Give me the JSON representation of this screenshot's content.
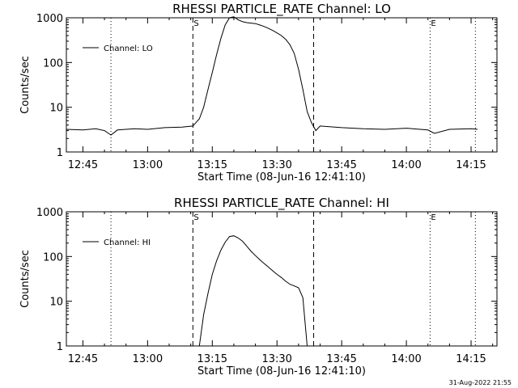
{
  "footer": {
    "timestamp": "31-Aug-2022 21:55"
  },
  "chart_data": [
    {
      "type": "line",
      "title": "RHESSI PARTICLE_RATE Channel: LO",
      "xlabel": "Start Time (08-Jun-16 12:41:10)",
      "ylabel": "Counts/sec",
      "yscale": "log",
      "xlim": [
        "12:41:10",
        "14:21:00"
      ],
      "ylim": [
        1,
        1000
      ],
      "x_tick_labels": [
        "12:45",
        "13:00",
        "13:15",
        "13:30",
        "13:45",
        "14:00",
        "14:15"
      ],
      "y_tick_labels": [
        "1",
        "10",
        "100",
        "1000"
      ],
      "legend": {
        "label": "Channel: LO",
        "position": "top-left"
      },
      "markers": [
        {
          "label": "S",
          "time": "13:10:30",
          "style": "dashed"
        },
        {
          "label": "",
          "time": "13:38:30",
          "style": "dashed"
        },
        {
          "label": "",
          "time": "12:51:30",
          "style": "dotted"
        },
        {
          "label": "E",
          "time": "14:05:30",
          "style": "dotted"
        },
        {
          "label": "",
          "time": "14:16:00",
          "style": "dotted"
        }
      ],
      "series": [
        {
          "name": "Channel: LO",
          "x": [
            "12:41:10",
            "12:45:00",
            "12:48:00",
            "12:50:00",
            "12:51:30",
            "12:53:00",
            "12:57:00",
            "13:00:00",
            "13:04:00",
            "13:08:00",
            "13:10:30",
            "13:12:00",
            "13:13:00",
            "13:14:00",
            "13:15:00",
            "13:16:00",
            "13:17:00",
            "13:18:00",
            "13:19:00",
            "13:20:00",
            "13:21:00",
            "13:22:00",
            "13:23:00",
            "13:24:00",
            "13:25:00",
            "13:26:00",
            "13:27:00",
            "13:28:00",
            "13:29:00",
            "13:30:00",
            "13:31:00",
            "13:32:00",
            "13:33:00",
            "13:34:00",
            "13:35:00",
            "13:36:00",
            "13:37:00",
            "13:38:00",
            "13:39:00",
            "13:40:00",
            "13:45:00",
            "13:50:00",
            "13:55:00",
            "14:00:00",
            "14:05:00",
            "14:06:30",
            "14:10:00",
            "14:15:00",
            "14:16:30"
          ],
          "y": [
            3.2,
            3.1,
            3.3,
            3.0,
            2.4,
            3.1,
            3.3,
            3.2,
            3.5,
            3.6,
            3.8,
            5.5,
            10,
            25,
            60,
            150,
            350,
            700,
            1000,
            1050,
            900,
            820,
            780,
            760,
            740,
            690,
            640,
            580,
            520,
            460,
            400,
            330,
            250,
            160,
            70,
            25,
            8,
            4.5,
            3.0,
            3.8,
            3.5,
            3.3,
            3.2,
            3.4,
            3.1,
            2.6,
            3.2,
            3.3,
            3.2
          ]
        }
      ]
    },
    {
      "type": "line",
      "title": "RHESSI PARTICLE_RATE Channel: HI",
      "xlabel": "Start Time (08-Jun-16 12:41:10)",
      "ylabel": "Counts/sec",
      "yscale": "log",
      "xlim": [
        "12:41:10",
        "14:21:00"
      ],
      "ylim": [
        1,
        1000
      ],
      "x_tick_labels": [
        "12:45",
        "13:00",
        "13:15",
        "13:30",
        "13:45",
        "14:00",
        "14:15"
      ],
      "y_tick_labels": [
        "1",
        "10",
        "100",
        "1000"
      ],
      "legend": {
        "label": "Channel: HI",
        "position": "top-left"
      },
      "markers": [
        {
          "label": "S",
          "time": "13:10:30",
          "style": "dashed"
        },
        {
          "label": "",
          "time": "13:38:30",
          "style": "dashed"
        },
        {
          "label": "",
          "time": "12:51:30",
          "style": "dotted"
        },
        {
          "label": "E",
          "time": "14:05:30",
          "style": "dotted"
        },
        {
          "label": "",
          "time": "14:16:00",
          "style": "dotted"
        }
      ],
      "series": [
        {
          "name": "Channel: HI",
          "x": [
            "13:12:00",
            "13:13:00",
            "13:14:00",
            "13:15:00",
            "13:16:00",
            "13:17:00",
            "13:18:00",
            "13:19:00",
            "13:20:00",
            "13:21:00",
            "13:22:00",
            "13:23:00",
            "13:24:00",
            "13:25:00",
            "13:26:00",
            "13:27:00",
            "13:28:00",
            "13:29:00",
            "13:30:00",
            "13:31:00",
            "13:32:00",
            "13:33:00",
            "13:34:00",
            "13:35:00",
            "13:36:00",
            "13:37:00"
          ],
          "y": [
            1,
            5,
            15,
            40,
            80,
            140,
            210,
            280,
            290,
            260,
            220,
            170,
            130,
            105,
            85,
            70,
            58,
            48,
            40,
            34,
            28,
            24,
            22,
            20,
            12,
            1
          ]
        }
      ]
    }
  ]
}
